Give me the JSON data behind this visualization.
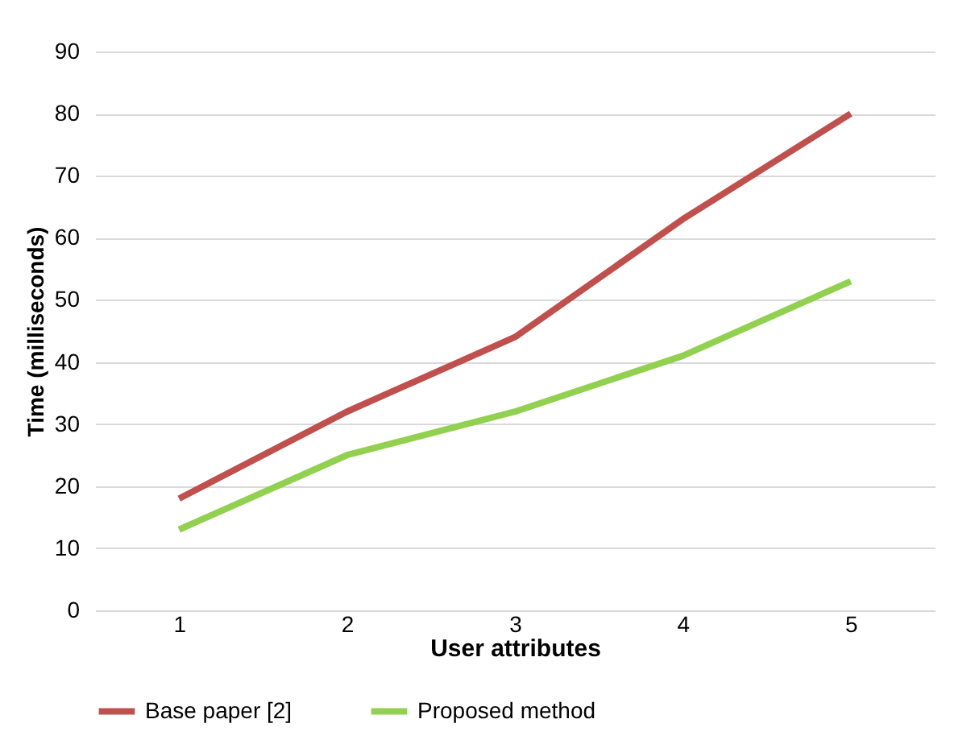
{
  "chart_data": {
    "type": "line",
    "xlabel": "User attributes",
    "ylabel": "Time (milliseconds)",
    "categories": [
      "1",
      "2",
      "3",
      "4",
      "5"
    ],
    "series": [
      {
        "name": "Base paper [2]",
        "color": "#c0504d",
        "values": [
          18,
          32,
          44,
          63,
          80
        ]
      },
      {
        "name": "Proposed method",
        "color": "#92d050",
        "values": [
          13,
          25,
          32,
          41,
          53
        ]
      }
    ],
    "ylim": [
      0,
      90
    ],
    "yticks": [
      0,
      10,
      20,
      30,
      40,
      50,
      60,
      70,
      80,
      90
    ],
    "grid": "y",
    "legend": "bottom",
    "marker": "none",
    "line_style": "solid"
  }
}
